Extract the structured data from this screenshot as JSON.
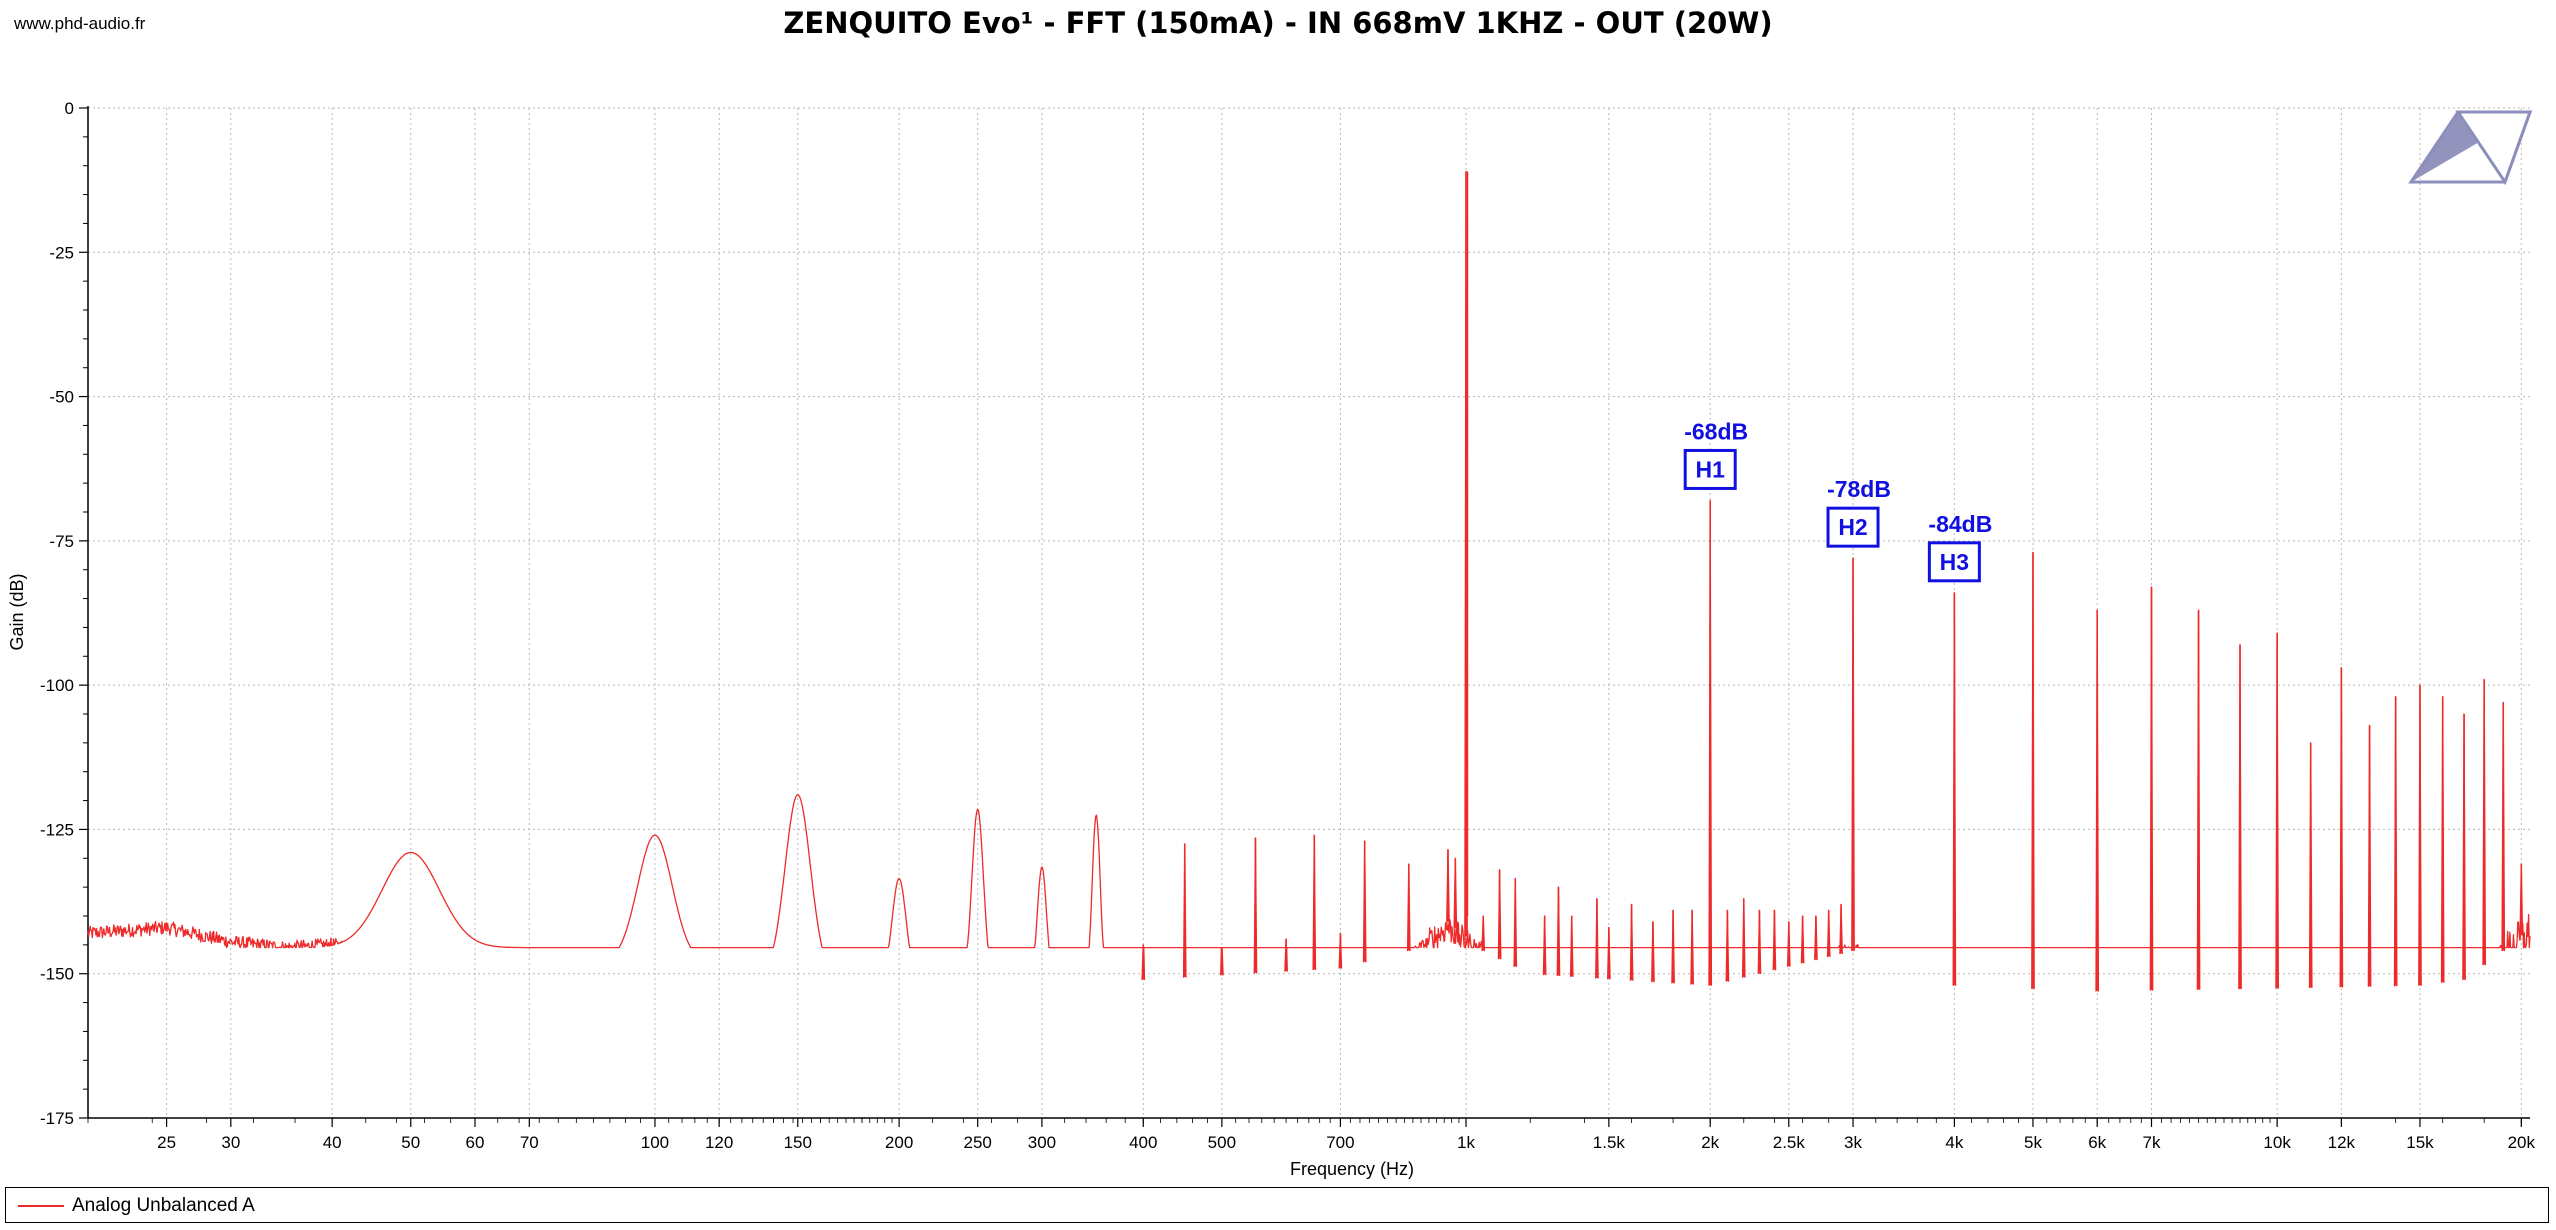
{
  "site": "www.phd-audio.fr",
  "chart_data": {
    "type": "line",
    "title": "ZENQUITO Evo¹ - FFT (150mA) - IN 668mV 1KHZ - OUT (20W)",
    "xlabel": "Frequency (Hz)",
    "ylabel": "Gain (dB)",
    "x_scale": "log",
    "xlim": [
      20,
      20500
    ],
    "ylim": [
      -175,
      0
    ],
    "grid": true,
    "x_ticks": [
      {
        "value": 25,
        "label": "25"
      },
      {
        "value": 30,
        "label": "30"
      },
      {
        "value": 40,
        "label": "40"
      },
      {
        "value": 50,
        "label": "50"
      },
      {
        "value": 60,
        "label": "60"
      },
      {
        "value": 70,
        "label": "70"
      },
      {
        "value": 100,
        "label": "100"
      },
      {
        "value": 120,
        "label": "120"
      },
      {
        "value": 150,
        "label": "150"
      },
      {
        "value": 200,
        "label": "200"
      },
      {
        "value": 250,
        "label": "250"
      },
      {
        "value": 300,
        "label": "300"
      },
      {
        "value": 400,
        "label": "400"
      },
      {
        "value": 500,
        "label": "500"
      },
      {
        "value": 700,
        "label": "700"
      },
      {
        "value": 1000,
        "label": "1k"
      },
      {
        "value": 1500,
        "label": "1.5k"
      },
      {
        "value": 2000,
        "label": "2k"
      },
      {
        "value": 2500,
        "label": "2.5k"
      },
      {
        "value": 3000,
        "label": "3k"
      },
      {
        "value": 4000,
        "label": "4k"
      },
      {
        "value": 5000,
        "label": "5k"
      },
      {
        "value": 6000,
        "label": "6k"
      },
      {
        "value": 7000,
        "label": "7k"
      },
      {
        "value": 10000,
        "label": "10k"
      },
      {
        "value": 12000,
        "label": "12k"
      },
      {
        "value": 15000,
        "label": "15k"
      },
      {
        "value": 20000,
        "label": "20k"
      }
    ],
    "y_ticks": [
      {
        "value": 0,
        "label": "0"
      },
      {
        "value": -25,
        "label": "-25"
      },
      {
        "value": -50,
        "label": "-50"
      },
      {
        "value": -75,
        "label": "-75"
      },
      {
        "value": -100,
        "label": "-100"
      },
      {
        "value": -125,
        "label": "-125"
      },
      {
        "value": -150,
        "label": "-150"
      },
      {
        "value": -175,
        "label": "-175"
      }
    ],
    "series": [
      {
        "name": "Analog Unbalanced A",
        "color": "#ee2a2a",
        "noise_floor": [
          [
            20,
            -143
          ],
          [
            25,
            -142
          ],
          [
            30,
            -144.5
          ],
          [
            35,
            -145.5
          ],
          [
            40,
            -145
          ],
          [
            45,
            -146
          ],
          [
            55,
            -145
          ],
          [
            60,
            -147
          ],
          [
            70,
            -148
          ],
          [
            80,
            -147
          ],
          [
            90,
            -148.5
          ],
          [
            100,
            -148
          ],
          [
            130,
            -150
          ],
          [
            200,
            -151
          ],
          [
            400,
            -152
          ],
          [
            700,
            -150
          ],
          [
            850,
            -147
          ],
          [
            950,
            -142
          ],
          [
            1050,
            -147
          ],
          [
            1200,
            -151
          ],
          [
            2000,
            -153
          ],
          [
            3000,
            -147
          ],
          [
            4000,
            -153
          ],
          [
            6000,
            -154
          ],
          [
            10000,
            -153.5
          ],
          [
            15000,
            -153
          ],
          [
            17000,
            -152
          ],
          [
            19000,
            -147
          ],
          [
            20500,
            -143
          ]
        ],
        "bumps": [
          {
            "f": 50,
            "level": -129,
            "width": 0.05
          },
          {
            "f": 79,
            "level": -147,
            "width": 0.02
          },
          {
            "f": 100,
            "level": -126,
            "width": 0.03
          },
          {
            "f": 150,
            "level": -119,
            "width": 0.022
          },
          {
            "f": 200,
            "level": -133.5,
            "width": 0.012
          },
          {
            "f": 250,
            "level": -121.5,
            "width": 0.01
          },
          {
            "f": 300,
            "level": -131.5,
            "width": 0.008
          },
          {
            "f": 350,
            "level": -122.5,
            "width": 0.007
          }
        ],
        "spikes": [
          {
            "f": 400,
            "level": -145
          },
          {
            "f": 450,
            "level": -127.5
          },
          {
            "f": 500,
            "level": -146
          },
          {
            "f": 550,
            "level": -126.5
          },
          {
            "f": 600,
            "level": -144
          },
          {
            "f": 650,
            "level": -126
          },
          {
            "f": 700,
            "level": -143
          },
          {
            "f": 750,
            "level": -127
          },
          {
            "f": 850,
            "level": -131
          },
          {
            "f": 950,
            "level": -128.5
          },
          {
            "f": 970,
            "level": -130
          },
          {
            "f": 1000,
            "level": -11
          },
          {
            "f": 1050,
            "level": -140
          },
          {
            "f": 1100,
            "level": -132
          },
          {
            "f": 1150,
            "level": -133.5
          },
          {
            "f": 1250,
            "level": -140
          },
          {
            "f": 1300,
            "level": -135
          },
          {
            "f": 1350,
            "level": -140
          },
          {
            "f": 1450,
            "level": -137
          },
          {
            "f": 1500,
            "level": -142
          },
          {
            "f": 1600,
            "level": -138
          },
          {
            "f": 1700,
            "level": -141
          },
          {
            "f": 1800,
            "level": -139
          },
          {
            "f": 1900,
            "level": -139
          },
          {
            "f": 2000,
            "level": -68
          },
          {
            "f": 2100,
            "level": -139
          },
          {
            "f": 2200,
            "level": -137
          },
          {
            "f": 2300,
            "level": -139
          },
          {
            "f": 2400,
            "level": -139
          },
          {
            "f": 2500,
            "level": -141
          },
          {
            "f": 2600,
            "level": -140
          },
          {
            "f": 2700,
            "level": -140
          },
          {
            "f": 2800,
            "level": -139
          },
          {
            "f": 2900,
            "level": -138
          },
          {
            "f": 3000,
            "level": -78
          },
          {
            "f": 4000,
            "level": -84
          },
          {
            "f": 5000,
            "level": -77
          },
          {
            "f": 6000,
            "level": -87
          },
          {
            "f": 7000,
            "level": -83
          },
          {
            "f": 8000,
            "level": -87
          },
          {
            "f": 9000,
            "level": -93
          },
          {
            "f": 10000,
            "level": -91
          },
          {
            "f": 11000,
            "level": -110
          },
          {
            "f": 12000,
            "level": -97
          },
          {
            "f": 13000,
            "level": -107
          },
          {
            "f": 14000,
            "level": -102
          },
          {
            "f": 15000,
            "level": -100
          },
          {
            "f": 16000,
            "level": -102
          },
          {
            "f": 17000,
            "level": -105
          },
          {
            "f": 18000,
            "level": -99
          },
          {
            "f": 19000,
            "level": -103
          },
          {
            "f": 20000,
            "level": -131
          }
        ]
      }
    ],
    "annotations": [
      {
        "label": "H1",
        "value": "-68dB",
        "f": 2000
      },
      {
        "label": "H2",
        "value": "-78dB",
        "f": 3000
      },
      {
        "label": "H3",
        "value": "-84dB",
        "f": 4000
      }
    ],
    "legend": {
      "position": "bottom",
      "entries": [
        "Analog Unbalanced A"
      ]
    }
  },
  "logo": {
    "color": "#8c8ebb",
    "icon": "triangle-logo-icon"
  }
}
